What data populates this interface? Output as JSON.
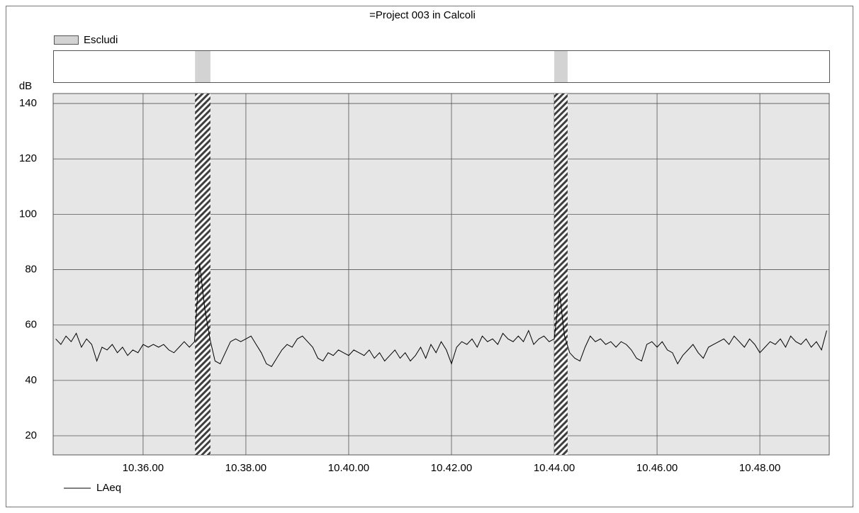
{
  "chart_data": {
    "type": "line",
    "title": "=Project 003 in Calcoli",
    "y_label": "dB",
    "exclusion_name": "Escludi",
    "exclusion_color": "#d3d3d3",
    "excluded": [
      [
        37.01,
        37.31
      ],
      [
        44.0,
        44.26
      ]
    ],
    "xlim": [
      34.25,
      49.35
    ],
    "xticks": [
      {
        "value": 36,
        "label": "10.36.00"
      },
      {
        "value": 38,
        "label": "10.38.00"
      },
      {
        "value": 40,
        "label": "10.40.00"
      },
      {
        "value": 42,
        "label": "10.42.00"
      },
      {
        "value": 44,
        "label": "10.44.00"
      },
      {
        "value": 46,
        "label": "10.46.00"
      },
      {
        "value": 48,
        "label": "10.48.00"
      }
    ],
    "ylim": [
      13.1,
      143.6
    ],
    "yticks": [
      20,
      40,
      60,
      80,
      100,
      120,
      140
    ],
    "grid": true,
    "x": [
      34.3,
      34.4,
      34.5,
      34.6,
      34.7,
      34.8,
      34.9,
      35.0,
      35.1,
      35.2,
      35.3,
      35.4,
      35.5,
      35.6,
      35.7,
      35.8,
      35.9,
      36.0,
      36.1,
      36.2,
      36.3,
      36.4,
      36.5,
      36.6,
      36.7,
      36.8,
      36.9,
      37.0,
      37.1,
      37.2,
      37.3,
      37.4,
      37.5,
      37.6,
      37.7,
      37.8,
      37.9,
      38.0,
      38.1,
      38.2,
      38.3,
      38.4,
      38.5,
      38.6,
      38.7,
      38.8,
      38.9,
      39.0,
      39.1,
      39.2,
      39.3,
      39.4,
      39.5,
      39.6,
      39.7,
      39.8,
      39.9,
      40.0,
      40.1,
      40.2,
      40.3,
      40.4,
      40.5,
      40.6,
      40.7,
      40.8,
      40.9,
      41.0,
      41.1,
      41.2,
      41.3,
      41.4,
      41.5,
      41.6,
      41.7,
      41.8,
      41.9,
      42.0,
      42.1,
      42.2,
      42.3,
      42.4,
      42.5,
      42.6,
      42.7,
      42.8,
      42.9,
      43.0,
      43.1,
      43.2,
      43.3,
      43.4,
      43.5,
      43.6,
      43.7,
      43.8,
      43.9,
      44.0,
      44.1,
      44.2,
      44.3,
      44.4,
      44.5,
      44.6,
      44.7,
      44.8,
      44.9,
      45.0,
      45.1,
      45.2,
      45.3,
      45.4,
      45.5,
      45.6,
      45.7,
      45.8,
      45.9,
      46.0,
      46.1,
      46.2,
      46.3,
      46.4,
      46.5,
      46.6,
      46.7,
      46.8,
      46.9,
      47.0,
      47.1,
      47.2,
      47.3,
      47.4,
      47.5,
      47.6,
      47.7,
      47.8,
      47.9,
      48.0,
      48.1,
      48.2,
      48.3,
      48.4,
      48.5,
      48.6,
      48.7,
      48.8,
      48.9,
      49.0,
      49.1,
      49.2,
      49.3
    ],
    "series": [
      {
        "name": "LAeq",
        "color": "#000000",
        "values": [
          55,
          53,
          56,
          54,
          57,
          52,
          55,
          53,
          47,
          52,
          51,
          53,
          50,
          52,
          49,
          51,
          50,
          53,
          52,
          53,
          52,
          53,
          51,
          50,
          52,
          54,
          52,
          54,
          82,
          66,
          55,
          47,
          46,
          50,
          54,
          55,
          54,
          55,
          56,
          53,
          50,
          46,
          45,
          48,
          51,
          53,
          52,
          55,
          56,
          54,
          52,
          48,
          47,
          50,
          49,
          51,
          50,
          49,
          51,
          50,
          49,
          51,
          48,
          50,
          47,
          49,
          51,
          48,
          50,
          47,
          49,
          52,
          48,
          53,
          50,
          54,
          51,
          46,
          52,
          54,
          53,
          55,
          52,
          56,
          54,
          55,
          53,
          57,
          55,
          54,
          56,
          54,
          58,
          53,
          55,
          56,
          54,
          55,
          72,
          56,
          50,
          48,
          47,
          52,
          56,
          54,
          55,
          53,
          54,
          52,
          54,
          53,
          51,
          48,
          47,
          53,
          54,
          52,
          54,
          51,
          50,
          46,
          49,
          51,
          53,
          50,
          48,
          52,
          53,
          54,
          55,
          53,
          56,
          54,
          52,
          55,
          53,
          50,
          52,
          54,
          53,
          55,
          52,
          56,
          54,
          53,
          55,
          52,
          54,
          51,
          58
        ]
      }
    ]
  }
}
